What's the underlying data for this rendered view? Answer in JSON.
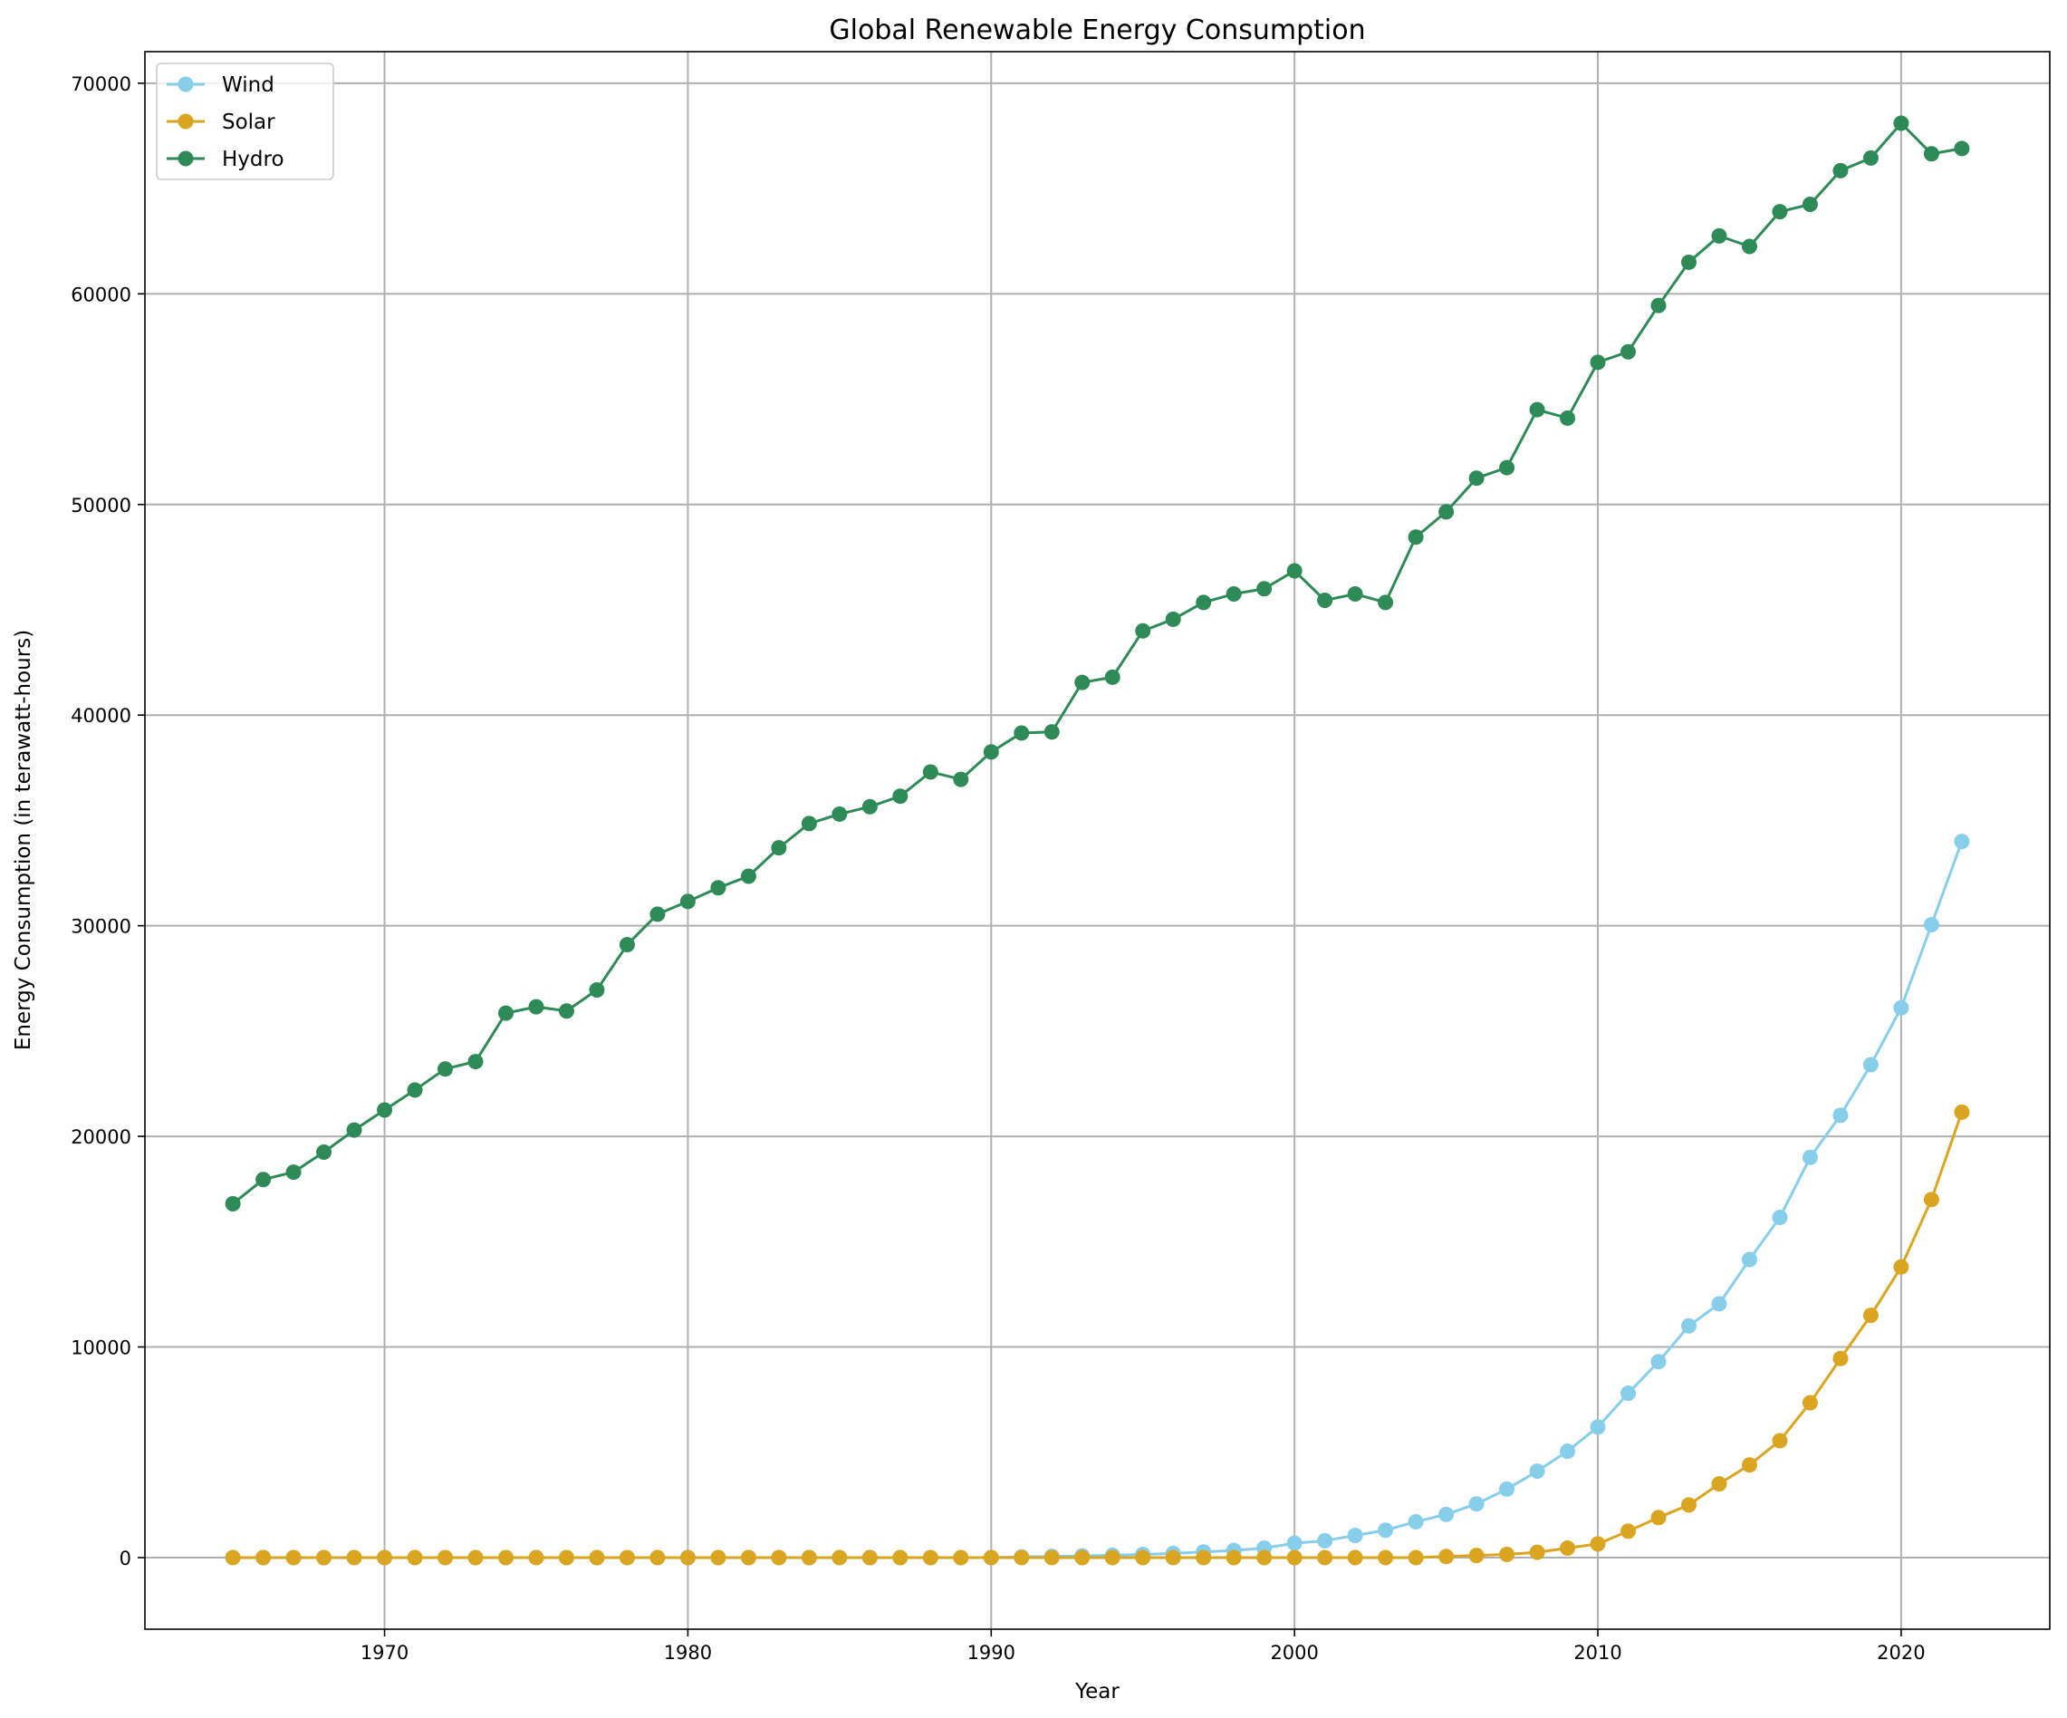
{
  "chart_data": {
    "type": "line",
    "title": "Global Renewable Energy Consumption",
    "xlabel": "Year",
    "ylabel": "Energy Consumption (in terawatt-hours)",
    "xlim": [
      1962.1,
      2024.9
    ],
    "ylim": [
      -3400,
      71500
    ],
    "x_ticks": [
      1970,
      1980,
      1990,
      2000,
      2010,
      2020
    ],
    "y_ticks": [
      0,
      10000,
      20000,
      30000,
      40000,
      50000,
      60000,
      70000
    ],
    "grid": true,
    "legend_position": "top-left",
    "x": [
      1965,
      1966,
      1967,
      1968,
      1969,
      1970,
      1971,
      1972,
      1973,
      1974,
      1975,
      1976,
      1977,
      1978,
      1979,
      1980,
      1981,
      1982,
      1983,
      1984,
      1985,
      1986,
      1987,
      1988,
      1989,
      1990,
      1991,
      1992,
      1993,
      1994,
      1995,
      1996,
      1997,
      1998,
      1999,
      2000,
      2001,
      2002,
      2003,
      2004,
      2005,
      2006,
      2007,
      2008,
      2009,
      2010,
      2011,
      2012,
      2013,
      2014,
      2015,
      2016,
      2017,
      2018,
      2019,
      2020,
      2021,
      2022
    ],
    "series": [
      {
        "name": "Wind",
        "color": "#87ceeb",
        "values": [
          0,
          0,
          0,
          0,
          0,
          0,
          0,
          0,
          0,
          0,
          0,
          0,
          0,
          0,
          0,
          0,
          0,
          0,
          0,
          0,
          0,
          0,
          0,
          0,
          0,
          0,
          30,
          60,
          80,
          110,
          150,
          200,
          270,
          340,
          450,
          680,
          800,
          1050,
          1300,
          1700,
          2050,
          2550,
          3250,
          4100,
          5050,
          6200,
          7800,
          9300,
          11000,
          12050,
          14150,
          16150,
          19000,
          21000,
          23400,
          26100,
          30050,
          34000
        ]
      },
      {
        "name": "Solar",
        "color": "#daa520",
        "values": [
          0,
          0,
          0,
          0,
          0,
          0,
          0,
          0,
          0,
          0,
          0,
          0,
          0,
          0,
          0,
          0,
          0,
          0,
          0,
          0,
          0,
          0,
          0,
          0,
          0,
          0,
          0,
          0,
          0,
          0,
          0,
          0,
          0,
          0,
          0,
          0,
          0,
          0,
          0,
          0,
          50,
          100,
          150,
          250,
          450,
          650,
          1250,
          1900,
          2500,
          3500,
          4400,
          5550,
          7350,
          9450,
          11500,
          13800,
          17000,
          21150
        ]
      },
      {
        "name": "Hydro",
        "color": "#2e8b57",
        "values": [
          16800,
          17950,
          18300,
          19250,
          20300,
          21250,
          22200,
          23200,
          23550,
          25850,
          26150,
          25950,
          26950,
          29100,
          30550,
          31150,
          31800,
          32350,
          33700,
          34850,
          35300,
          35650,
          36150,
          37300,
          36950,
          38250,
          39150,
          39200,
          41550,
          41800,
          44000,
          44550,
          45350,
          45750,
          46000,
          46850,
          45450,
          45750,
          45350,
          48450,
          49650,
          51250,
          51750,
          54500,
          54100,
          56750,
          57250,
          59450,
          61500,
          62750,
          62250,
          63900,
          64250,
          65850,
          66450,
          68100,
          66650,
          66900
        ]
      }
    ]
  }
}
